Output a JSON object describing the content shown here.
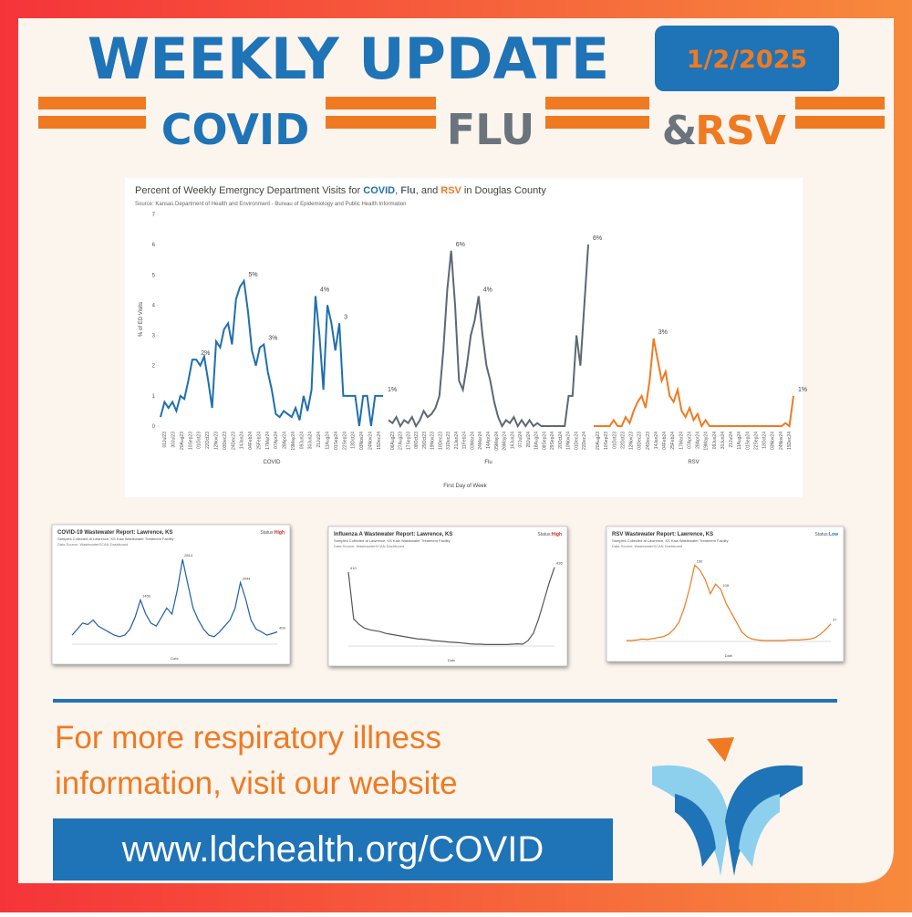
{
  "header": {
    "title": "WEEKLY UPDATE",
    "date": "1/2/2025",
    "topics": [
      "COVID",
      "FLU",
      "&",
      "RSV"
    ]
  },
  "chart_data": [
    {
      "type": "line",
      "title_parts": [
        "Percent of Weekly Emergncy Department Visits for ",
        "COVID",
        ", ",
        "Flu",
        ", and ",
        "RSV",
        " in Douglas County"
      ],
      "subtitle": "Source: Kansas Department of Health and Environment - Bureau of Epidemiology and Public Health Information",
      "ylabel": "% of ED Visits",
      "xlabel": "First Day of Week",
      "ylim": [
        0,
        7
      ],
      "yticks": [
        0,
        1,
        2,
        3,
        4,
        5,
        6,
        7
      ],
      "panels": [
        {
          "name": "COVID",
          "color": "#1f6fb0",
          "values": [
            0.3,
            0.8,
            0.6,
            0.8,
            0.5,
            1.0,
            0.9,
            1.5,
            2.2,
            2.2,
            2.0,
            2.3,
            1.5,
            0.6,
            2.8,
            2.6,
            3.2,
            3.4,
            2.7,
            4.2,
            4.6,
            4.8,
            3.8,
            2.5,
            2.0,
            2.6,
            2.7,
            1.8,
            1.2,
            0.4,
            0.3,
            0.5,
            0.4,
            0.3,
            0.6,
            0.2,
            1.0,
            0.5,
            1.2,
            4.3,
            3.0,
            1.2,
            4.0,
            3.4,
            2.5,
            3.4,
            1.0,
            1.0,
            1.0,
            1.0,
            0,
            1.0,
            1.0,
            0,
            1.0,
            1.0,
            1.0
          ],
          "annotations": [
            {
              "index": 9,
              "label": "2%"
            },
            {
              "index": 21,
              "label": "5%"
            },
            {
              "index": 26,
              "label": "3%"
            },
            {
              "index": 39,
              "label": "4%"
            },
            {
              "index": 45,
              "label": "3"
            },
            {
              "index": 56,
              "label": "1%"
            }
          ],
          "xtick_labels": [
            "01Jul23",
            "30Jul23",
            "20Aug23",
            "10Sep23",
            "01Oct23",
            "22Oct23",
            "12Nov23",
            "03Dec23",
            "24Dec23",
            "14Jan24",
            "04Feb24",
            "25Feb24",
            "17Mar24",
            "07Apr24",
            "28Apr24",
            "19May24",
            "09Jun24",
            "30Jun24",
            "21Jul24",
            "11Aug24",
            "01Sep24",
            "22Sep24",
            "13Oct24",
            "03Nov24",
            "24Nov24",
            "15Dec24"
          ]
        },
        {
          "name": "Flu",
          "color": "#5d6873",
          "values": [
            0.2,
            0.1,
            0.3,
            0,
            0.2,
            0.1,
            0.3,
            0,
            0.2,
            0.5,
            0.3,
            0.4,
            0.6,
            1.0,
            2.5,
            4.5,
            5.8,
            4.0,
            1.5,
            1.2,
            2.0,
            3.0,
            3.5,
            4.3,
            3.0,
            2.0,
            1.5,
            0.8,
            0.3,
            0,
            0.2,
            0.1,
            0.3,
            0,
            0.2,
            0,
            0.2,
            0,
            0.1,
            0,
            0,
            0,
            0,
            0,
            0,
            0,
            1.0,
            1.0,
            3.0,
            2.0,
            4.0,
            6.0
          ],
          "annotations": [
            {
              "index": 16,
              "label": "6%"
            },
            {
              "index": 23,
              "label": "4%"
            },
            {
              "index": 51,
              "label": "6%"
            }
          ],
          "xtick_labels": [
            "06Aug23",
            "27Aug23",
            "17Sep23",
            "08Oct23",
            "29Oct23",
            "19Nov23",
            "10Dec23",
            "31Dec23",
            "21Jan24",
            "11Feb24",
            "03Mar24",
            "24Mar24",
            "14Apr24",
            "05May24",
            "26May24",
            "16Jun24",
            "07Jul24",
            "28Jul24",
            "18Aug24",
            "08Sep24",
            "29Sep24",
            "20Oct24",
            "10Nov24",
            "01Dec24",
            "22Dec24"
          ]
        },
        {
          "name": "RSV",
          "color": "#f07a22",
          "values": [
            0,
            0,
            0,
            0,
            0,
            0.2,
            0,
            0,
            0.3,
            0.1,
            0.5,
            0.8,
            1.0,
            0.6,
            1.5,
            2.9,
            2.2,
            1.5,
            1.8,
            1.0,
            0.8,
            1.2,
            0.5,
            0.3,
            0.6,
            0.2,
            0.4,
            0,
            0.2,
            0,
            0,
            0,
            0,
            0,
            0,
            0,
            0,
            0,
            0,
            0,
            0,
            0,
            0,
            0,
            0,
            0,
            0,
            0,
            0.1,
            0,
            1.0
          ],
          "annotations": [
            {
              "index": 15,
              "label": "3%"
            },
            {
              "index": 50,
              "label": "1%"
            }
          ],
          "xtick_labels": [
            "20Aug23",
            "10Sep23",
            "01Oct23",
            "22Oct23",
            "12Nov23",
            "03Dec23",
            "24Dec23",
            "14Jan24",
            "04Feb24",
            "25Feb24",
            "17Mar24",
            "07Apr24",
            "28Apr24",
            "19May24",
            "09Jun24",
            "30Jun24",
            "21Jul24",
            "11Aug24",
            "01Sep24",
            "22Sep24",
            "13Oct24",
            "03Nov24",
            "24Nov24",
            "15Dec24"
          ]
        }
      ]
    },
    {
      "type": "line",
      "title": "COVID-19 Wastewater Report: Lawrence, KS",
      "subtitle": "Samples Collected at Lawrence, KS Kaw Wastewater Treatment Facility",
      "source": "Data Source: WastewaterSCAN Dashboard",
      "status_label": "Status:",
      "status": "High",
      "xlabel": "Date",
      "color": "#1f5fa8",
      "ylim": [
        0,
        3000
      ],
      "values": [
        300,
        500,
        700,
        650,
        800,
        600,
        500,
        400,
        300,
        250,
        300,
        500,
        900,
        1469,
        1000,
        700,
        600,
        900,
        1200,
        1000,
        1800,
        2814,
        2000,
        1200,
        800,
        500,
        300,
        250,
        400,
        600,
        800,
        1200,
        2044,
        1500,
        800,
        500,
        409,
        300,
        350,
        409
      ],
      "annotations": [
        {
          "index": 13,
          "label": "1469"
        },
        {
          "index": 21,
          "label": "2814"
        },
        {
          "index": 32,
          "label": "2044"
        },
        {
          "index": 39,
          "label": "409"
        }
      ]
    },
    {
      "type": "line",
      "title": "Influenza A Wastewater Report: Lawrence, KS",
      "subtitle": "Samples Collected at Lawrence, KS Kaw Wastewater Treatment Facility",
      "source": "Data Source: WastewaterSCAN Dashboard",
      "status_label": "Status:",
      "status": "High",
      "xlabel": "Date",
      "color": "#555555",
      "ylim": [
        0,
        500
      ],
      "values": [
        410,
        150,
        120,
        100,
        90,
        85,
        80,
        70,
        65,
        60,
        55,
        50,
        45,
        40,
        38,
        35,
        30,
        28,
        25,
        22,
        20,
        18,
        15,
        12,
        10,
        10,
        8,
        8,
        8,
        8,
        8,
        10,
        12,
        10,
        30,
        70,
        150,
        250,
        350,
        436
      ],
      "annotations": [
        {
          "index": 0,
          "label": "410"
        },
        {
          "index": 39,
          "label": "436"
        }
      ]
    },
    {
      "type": "line",
      "title": "RSV Wastewater Report: Lawrence, KS",
      "subtitle": "Samples Collected at Lawrence, KS Kaw Wastewater Treatment Facility",
      "source": "Data Source: WastewaterSCAN Dashboard",
      "status_label": "Status:",
      "status": "Low",
      "xlabel": "Date",
      "color": "#f07a22",
      "ylim": [
        0,
        180
      ],
      "values": [
        2,
        2,
        3,
        5,
        4,
        6,
        8,
        10,
        15,
        25,
        40,
        70,
        110,
        160,
        150,
        130,
        100,
        120,
        109,
        80,
        60,
        40,
        20,
        10,
        5,
        3,
        2,
        2,
        2,
        2,
        2,
        3,
        3,
        3,
        4,
        5,
        8,
        15,
        25,
        37
      ],
      "annotations": [
        {
          "index": 13,
          "label": "160"
        },
        {
          "index": 18,
          "label": "109"
        },
        {
          "index": 39,
          "label": "37"
        }
      ]
    }
  ],
  "footer": {
    "lines": [
      "For more respiratory illness",
      "information, visit our website"
    ],
    "url": "www.ldchealth.org/COVID"
  }
}
